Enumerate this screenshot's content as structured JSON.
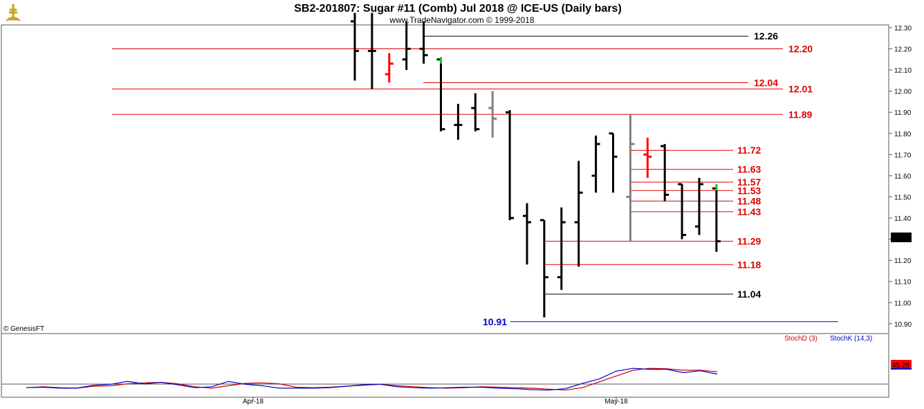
{
  "header": {
    "title": "SB2-201807:  Sugar #11 (Comb) Jul 2018 @ ICE-US  (Daily bars)",
    "subtitle": "www.TradeNavigator.com © 1999-2018"
  },
  "watermark": "© GenesisFT",
  "colors": {
    "bar": "#000000",
    "gray_bar": "#808080",
    "up_bar": "#ff0000",
    "support": "#ff0000",
    "blue": "#0000ff",
    "stoch_d": "#cc0000",
    "stoch_k": "#0000cc"
  },
  "chart_data": [
    {
      "type": "ohlc",
      "ylim": [
        10.87,
        12.3
      ],
      "yticks": [
        "12.30",
        "12.20",
        "12.10",
        "12.00",
        "11.90",
        "11.80",
        "11.70",
        "11.60",
        "11.50",
        "11.40",
        "11.30",
        "11.20",
        "11.10",
        "11.00",
        "10.90"
      ],
      "last_price": "11.29",
      "xticks": [
        "Apr-18",
        "May-18"
      ],
      "bars": [
        {
          "high": 12.37,
          "low": 12.05,
          "open": 12.33,
          "close": 12.19,
          "color": "black"
        },
        {
          "high": 12.37,
          "low": 12.01,
          "open": 12.19,
          "close": 12.19,
          "color": "black"
        },
        {
          "high": 12.18,
          "low": 12.04,
          "open": 12.08,
          "close": 12.13,
          "color": "red"
        },
        {
          "high": 12.33,
          "low": 12.1,
          "open": 12.15,
          "close": 12.2,
          "color": "black"
        },
        {
          "high": 12.33,
          "low": 12.13,
          "open": 12.2,
          "close": 12.17,
          "color": "black"
        },
        {
          "high": 12.16,
          "low": 11.81,
          "open": 12.15,
          "close": 11.82,
          "color": "black"
        },
        {
          "high": 11.94,
          "low": 11.77,
          "open": 11.84,
          "close": 11.84,
          "color": "black"
        },
        {
          "high": 11.99,
          "low": 11.81,
          "open": 11.92,
          "close": 11.82,
          "color": "black"
        },
        {
          "high": 12.0,
          "low": 11.78,
          "open": 11.92,
          "close": 11.87,
          "color": "gray"
        },
        {
          "high": 11.91,
          "low": 11.39,
          "open": 11.9,
          "close": 11.4,
          "color": "black"
        },
        {
          "high": 11.47,
          "low": 11.18,
          "open": 11.41,
          "close": 11.38,
          "color": "black"
        },
        {
          "high": 11.39,
          "low": 10.93,
          "open": 11.39,
          "close": 11.12,
          "color": "black"
        },
        {
          "high": 11.45,
          "low": 11.06,
          "open": 11.12,
          "close": 11.38,
          "color": "black"
        },
        {
          "high": 11.67,
          "low": 11.17,
          "open": 11.38,
          "close": 11.52,
          "color": "black"
        },
        {
          "high": 11.79,
          "low": 11.52,
          "open": 11.6,
          "close": 11.75,
          "color": "black"
        },
        {
          "high": 11.8,
          "low": 11.52,
          "open": 11.8,
          "close": 11.69,
          "color": "black"
        },
        {
          "high": 11.89,
          "low": 11.29,
          "open": 11.5,
          "close": 11.75,
          "color": "gray"
        },
        {
          "high": 11.78,
          "low": 11.59,
          "open": 11.7,
          "close": 11.69,
          "color": "red"
        },
        {
          "high": 11.75,
          "low": 11.48,
          "open": 11.74,
          "close": 11.51,
          "color": "black"
        },
        {
          "high": 11.56,
          "low": 11.3,
          "open": 11.56,
          "close": 11.32,
          "color": "black"
        },
        {
          "high": 11.59,
          "low": 11.32,
          "open": 11.36,
          "close": 11.56,
          "color": "black"
        },
        {
          "high": 11.54,
          "low": 11.24,
          "open": 11.54,
          "close": 11.29,
          "color": "black"
        }
      ],
      "levels": [
        {
          "value": 12.26,
          "label": "12.26",
          "color": "black"
        },
        {
          "value": 12.2,
          "label": "12.20",
          "color": "red"
        },
        {
          "value": 12.04,
          "label": "12.04",
          "color": "red"
        },
        {
          "value": 12.01,
          "label": "12.01",
          "color": "red"
        },
        {
          "value": 11.89,
          "label": "11.89",
          "color": "red"
        },
        {
          "value": 11.72,
          "label": "11.72",
          "color": "red"
        },
        {
          "value": 11.63,
          "label": "11.63",
          "color": "red"
        },
        {
          "value": 11.57,
          "label": "11.57",
          "color": "red"
        },
        {
          "value": 11.53,
          "label": "11.53",
          "color": "red"
        },
        {
          "value": 11.48,
          "label": "11.48",
          "color": "red"
        },
        {
          "value": 11.43,
          "label": "11.43",
          "color": "red"
        },
        {
          "value": 11.29,
          "label": "11.29",
          "color": "red"
        },
        {
          "value": 11.18,
          "label": "11.18",
          "color": "red"
        },
        {
          "value": 11.04,
          "label": "11.04",
          "color": "black"
        },
        {
          "value": 10.91,
          "label": "10.91",
          "color": "blue"
        }
      ]
    },
    {
      "type": "line",
      "series": [
        {
          "name": "StochD (3)",
          "color": "#cc0000",
          "values": [
            14,
            16,
            14,
            13,
            17,
            18,
            22,
            24,
            25,
            22,
            16,
            13,
            18,
            23,
            24,
            22,
            15,
            14,
            15,
            17,
            19,
            21,
            18,
            16,
            14,
            13,
            14,
            16,
            15,
            14,
            13,
            11,
            9,
            14,
            26,
            38,
            50,
            54,
            53,
            50,
            50,
            47
          ]
        },
        {
          "name": "StochK (14,3)",
          "color": "#0000cc",
          "values": [
            14,
            15,
            13,
            13,
            19,
            21,
            27,
            22,
            25,
            20,
            14,
            16,
            27,
            21,
            18,
            13,
            13,
            13,
            14,
            17,
            20,
            21,
            16,
            14,
            13,
            14,
            15,
            15,
            13,
            12,
            10,
            9,
            12,
            23,
            32,
            48,
            54,
            52,
            52,
            45,
            49,
            42
          ]
        }
      ],
      "last_value": "45.29",
      "ylim": [
        0,
        100
      ]
    }
  ]
}
